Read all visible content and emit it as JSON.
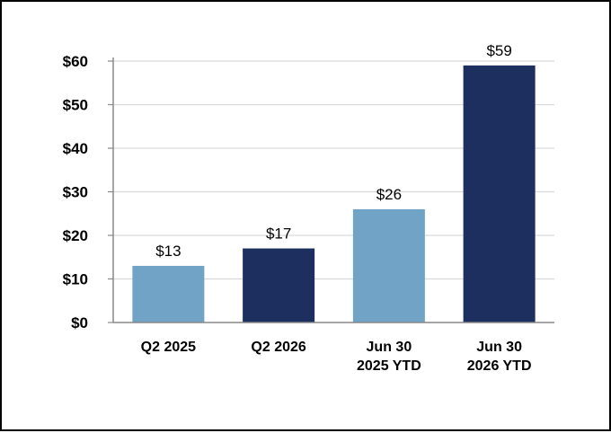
{
  "chart_data": {
    "type": "bar",
    "categories": [
      [
        "Q2 2025"
      ],
      [
        "Q2 2026"
      ],
      [
        "Jun 30",
        "2025 YTD"
      ],
      [
        "Jun 30",
        "2026 YTD"
      ]
    ],
    "values": [
      13,
      17,
      26,
      59
    ],
    "data_labels": [
      "$13",
      "$17",
      "$26",
      "$59"
    ],
    "colors": [
      "#71a3c6",
      "#1d2f5e",
      "#71a3c6",
      "#1d2f5e"
    ],
    "ylim": [
      0,
      60
    ],
    "yticks": [
      0,
      10,
      20,
      30,
      40,
      50,
      60
    ],
    "ytick_labels": [
      "$0",
      "$10",
      "$20",
      "$30",
      "$40",
      "$50",
      "$60"
    ],
    "grid": true,
    "title": "",
    "xlabel": "",
    "ylabel": ""
  }
}
